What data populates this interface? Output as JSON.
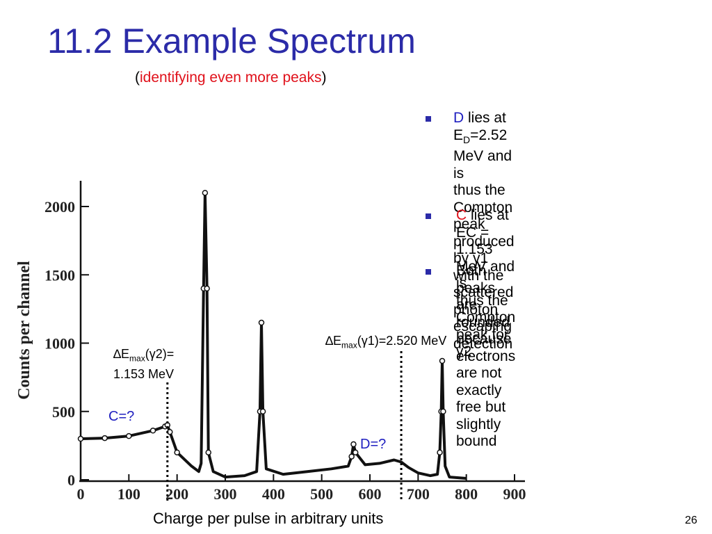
{
  "slide": {
    "title": "11.2 Example Spectrum",
    "subtitle_open": "(",
    "subtitle_red": "identifying even more peaks",
    "subtitle_close": ")",
    "page_number": "26",
    "x_caption": "Charge per pulse in arbitrary units"
  },
  "bullets": [
    {
      "key": "D",
      "line1": " lies at E",
      "sub": "D",
      "line1b": "=2.52 MeV and is",
      "rest": [
        "thus the Compton peak",
        "produced by γ1 with the",
        "scattered photon escaping",
        "detection"
      ]
    },
    {
      "key": "C",
      "line1": " lies at EC = 1.153 MeV and is",
      "rest": [
        "thus the Compton peak for γ2"
      ]
    },
    {
      "line1": "Both peaks are rounded",
      "rest": [
        "because electrons are not",
        "exactly free but slightly bound"
      ]
    }
  ],
  "annotations": {
    "emax2_a": "∆E",
    "emax2_sub": "max",
    "emax2_b": "(γ2)=",
    "emax2_value": "1.153 MeV",
    "emax1_a": "∆E",
    "emax1_sub": "max",
    "emax1_b": "(γ1)=2.520 MeV",
    "c_label": "C=?",
    "d_label": "D=?"
  },
  "colors": {
    "title": "#2b2ba8",
    "accent_red": "#e0101a",
    "label_blue": "#2020c0"
  },
  "chart_data": {
    "type": "line",
    "ylabel": "Counts per channel",
    "xlabel": "Charge per pulse in arbitrary units",
    "xlim": [
      0,
      900
    ],
    "ylim": [
      0,
      2200
    ],
    "x_ticks": [
      0,
      100,
      200,
      300,
      400,
      500,
      600,
      700,
      800,
      900
    ],
    "y_ticks": [
      0,
      500,
      1000,
      1500,
      2000
    ],
    "series": [
      {
        "values": [
          [
            0,
            300
          ],
          [
            50,
            305
          ],
          [
            100,
            320
          ],
          [
            150,
            360
          ],
          [
            175,
            390
          ],
          [
            180,
            400
          ],
          [
            185,
            350
          ],
          [
            200,
            200
          ],
          [
            230,
            100
          ],
          [
            245,
            60
          ],
          [
            250,
            120
          ],
          [
            255,
            1400
          ],
          [
            258,
            2100
          ],
          [
            262,
            1400
          ],
          [
            265,
            200
          ],
          [
            275,
            60
          ],
          [
            300,
            20
          ],
          [
            340,
            30
          ],
          [
            365,
            60
          ],
          [
            372,
            500
          ],
          [
            375,
            1150
          ],
          [
            378,
            500
          ],
          [
            385,
            80
          ],
          [
            420,
            40
          ],
          [
            470,
            60
          ],
          [
            520,
            80
          ],
          [
            555,
            100
          ],
          [
            562,
            170
          ],
          [
            566,
            260
          ],
          [
            570,
            200
          ],
          [
            590,
            110
          ],
          [
            620,
            120
          ],
          [
            650,
            145
          ],
          [
            665,
            130
          ],
          [
            680,
            90
          ],
          [
            700,
            50
          ],
          [
            725,
            30
          ],
          [
            740,
            40
          ],
          [
            745,
            200
          ],
          [
            748,
            500
          ],
          [
            750,
            870
          ],
          [
            752,
            500
          ],
          [
            756,
            100
          ],
          [
            765,
            20
          ],
          [
            800,
            10
          ]
        ]
      }
    ],
    "markers": [
      {
        "x": 180,
        "label": "C",
        "energy": "1.153 MeV"
      },
      {
        "x": 665,
        "label": "D",
        "energy": "2.520 MeV"
      }
    ]
  }
}
